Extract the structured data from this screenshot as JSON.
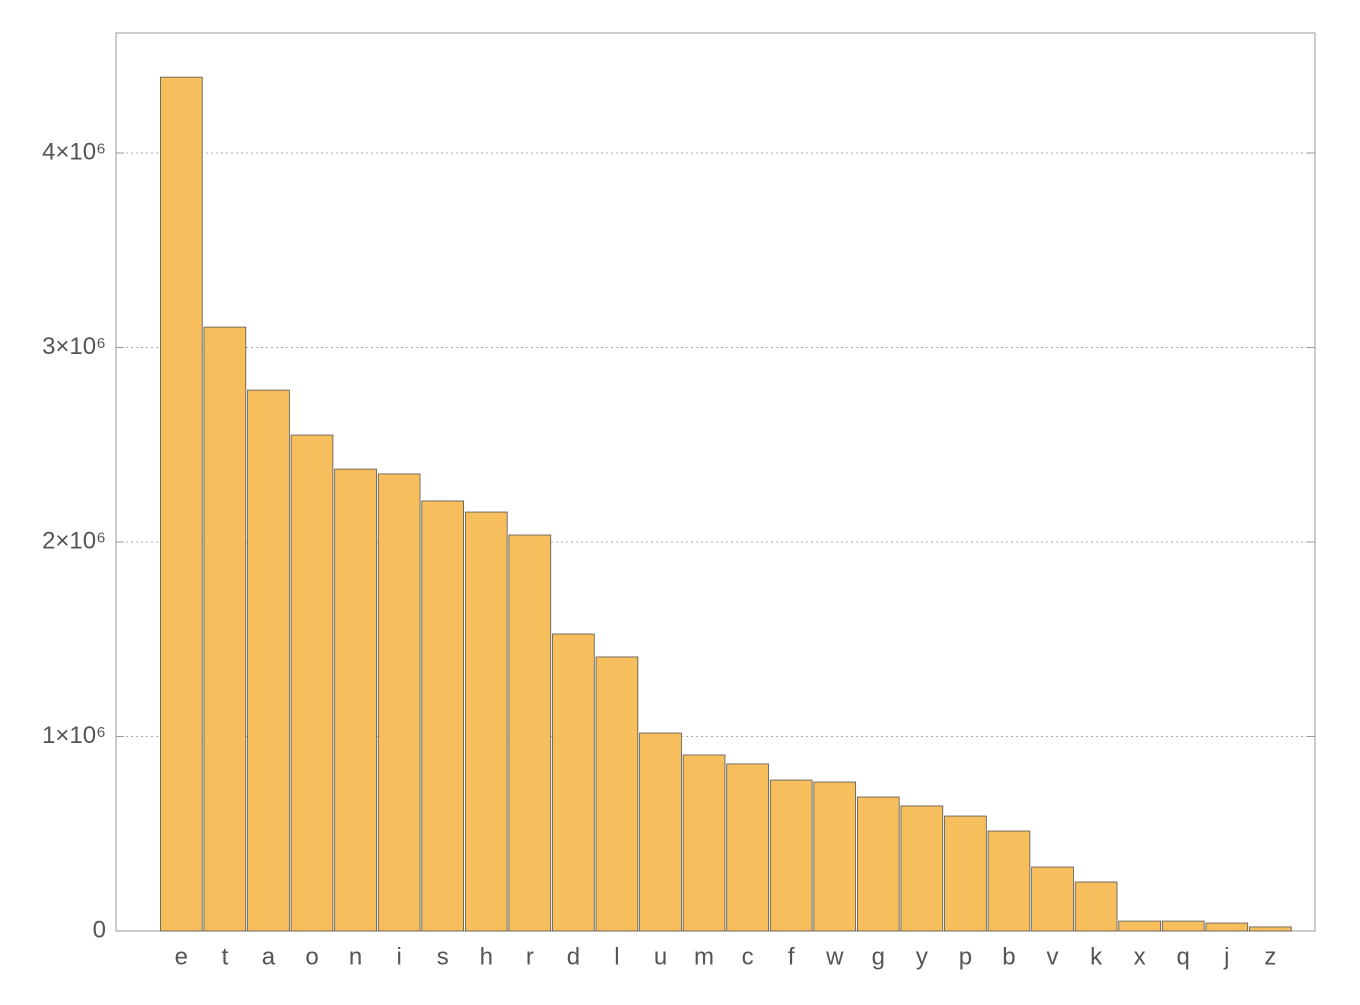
{
  "chart_data": {
    "type": "bar",
    "categories": [
      "e",
      "t",
      "a",
      "o",
      "n",
      "i",
      "s",
      "h",
      "r",
      "d",
      "l",
      "u",
      "m",
      "c",
      "f",
      "w",
      "g",
      "y",
      "p",
      "b",
      "v",
      "k",
      "x",
      "q",
      "j",
      "z"
    ],
    "values": [
      4390000,
      3105000,
      2781000,
      2550000,
      2375000,
      2350000,
      2211000,
      2154000,
      2036000,
      1527000,
      1409000,
      1018000,
      905000,
      859000,
      776000,
      766000,
      689000,
      643000,
      591000,
      514000,
      329000,
      252000,
      51000,
      51000,
      41000,
      21000
    ],
    "color": "#f7be5e",
    "ylim": [
      0,
      4617000
    ],
    "yticks": [
      0,
      {
        "value": 1000000,
        "label": "1×10⁶"
      },
      {
        "value": 2000000,
        "label": "2×10⁶"
      },
      {
        "value": 3000000,
        "label": "3×10⁶"
      },
      {
        "value": 4000000,
        "label": "4×10⁶"
      }
    ],
    "grid": true
  }
}
